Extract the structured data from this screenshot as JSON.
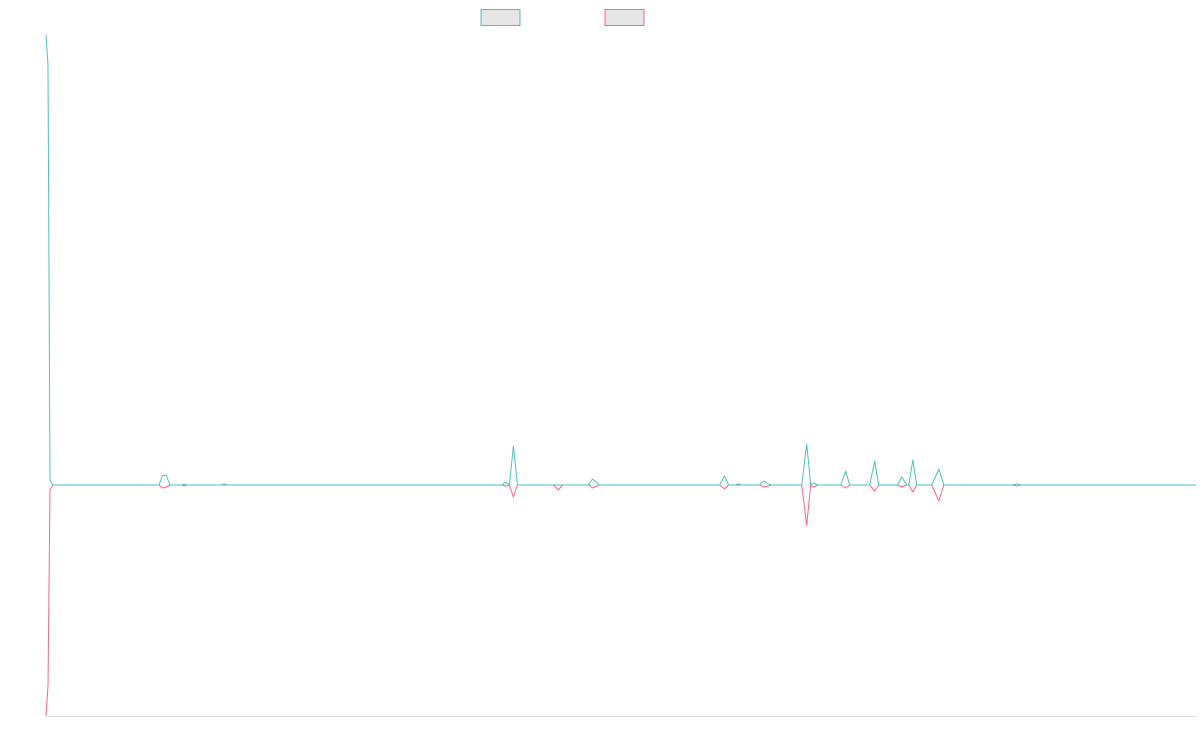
{
  "colors": {
    "background": "#ffffff",
    "axis": "#dddddd",
    "legend_fill": "#e6e6e6"
  },
  "chart_data": {
    "type": "line",
    "grid": false,
    "legend_placement": "top-center",
    "x_range": [
      0,
      1144
    ],
    "ylim": [
      -230,
      450
    ],
    "series": [
      {
        "color": "#4bc0c0",
        "points": [
          [
            0,
            450
          ],
          [
            2,
            420
          ],
          [
            4,
            5
          ],
          [
            7,
            0
          ],
          [
            113,
            0
          ],
          [
            116,
            9
          ],
          [
            120,
            10
          ],
          [
            124,
            0
          ],
          [
            136,
            0
          ],
          [
            138,
            1
          ],
          [
            141,
            0
          ],
          [
            175,
            0
          ],
          [
            178,
            1
          ],
          [
            181,
            0
          ],
          [
            456,
            0
          ],
          [
            459,
            3
          ],
          [
            463,
            0
          ],
          [
            467,
            39
          ],
          [
            471,
            0
          ],
          [
            538,
            0
          ],
          [
            544,
            0
          ],
          [
            542,
            0
          ],
          [
            546,
            6
          ],
          [
            553,
            0
          ],
          [
            673,
            0
          ],
          [
            678,
            9
          ],
          [
            682,
            0
          ],
          [
            689,
            0
          ],
          [
            692,
            1
          ],
          [
            695,
            0
          ],
          [
            713,
            0
          ],
          [
            717,
            4
          ],
          [
            722,
            1
          ],
          [
            725,
            0
          ],
          [
            755,
            0
          ],
          [
            760,
            41
          ],
          [
            764,
            0
          ],
          [
            767,
            2
          ],
          [
            771,
            0
          ],
          [
            794,
            0
          ],
          [
            799,
            14
          ],
          [
            803,
            0
          ],
          [
            823,
            0
          ],
          [
            828,
            24
          ],
          [
            832,
            0
          ],
          [
            851,
            0
          ],
          [
            855,
            8
          ],
          [
            860,
            0
          ],
          [
            862,
            0
          ],
          [
            866,
            25
          ],
          [
            870,
            0
          ],
          [
            885,
            0
          ],
          [
            892,
            16
          ],
          [
            897,
            0
          ],
          [
            966,
            0
          ],
          [
            970,
            1
          ],
          [
            974,
            0
          ],
          [
            1149,
            0
          ]
        ]
      },
      {
        "color": "#ff6384",
        "points": [
          [
            0,
            -230
          ],
          [
            2,
            -200
          ],
          [
            4,
            -5
          ],
          [
            7,
            0
          ],
          [
            113,
            0
          ],
          [
            116,
            -3
          ],
          [
            120,
            -2
          ],
          [
            124,
            0
          ],
          [
            136,
            0
          ],
          [
            138,
            -1
          ],
          [
            141,
            0
          ],
          [
            456,
            0
          ],
          [
            459,
            -1
          ],
          [
            463,
            0
          ],
          [
            467,
            -12
          ],
          [
            471,
            0
          ],
          [
            507,
            0
          ],
          [
            512,
            -5
          ],
          [
            516,
            0
          ],
          [
            542,
            0
          ],
          [
            546,
            -3
          ],
          [
            553,
            0
          ],
          [
            673,
            0
          ],
          [
            678,
            -4
          ],
          [
            682,
            0
          ],
          [
            713,
            0
          ],
          [
            717,
            -2
          ],
          [
            722,
            -1
          ],
          [
            725,
            0
          ],
          [
            755,
            0
          ],
          [
            760,
            -40
          ],
          [
            764,
            0
          ],
          [
            767,
            -2
          ],
          [
            771,
            0
          ],
          [
            794,
            0
          ],
          [
            799,
            -3
          ],
          [
            803,
            0
          ],
          [
            823,
            0
          ],
          [
            828,
            -6
          ],
          [
            832,
            0
          ],
          [
            851,
            0
          ],
          [
            855,
            -2
          ],
          [
            860,
            0
          ],
          [
            862,
            0
          ],
          [
            866,
            -7
          ],
          [
            870,
            0
          ],
          [
            885,
            0
          ],
          [
            892,
            -16
          ],
          [
            897,
            0
          ],
          [
            966,
            0
          ],
          [
            970,
            -1
          ],
          [
            974,
            0
          ],
          [
            1149,
            0
          ]
        ]
      }
    ]
  }
}
